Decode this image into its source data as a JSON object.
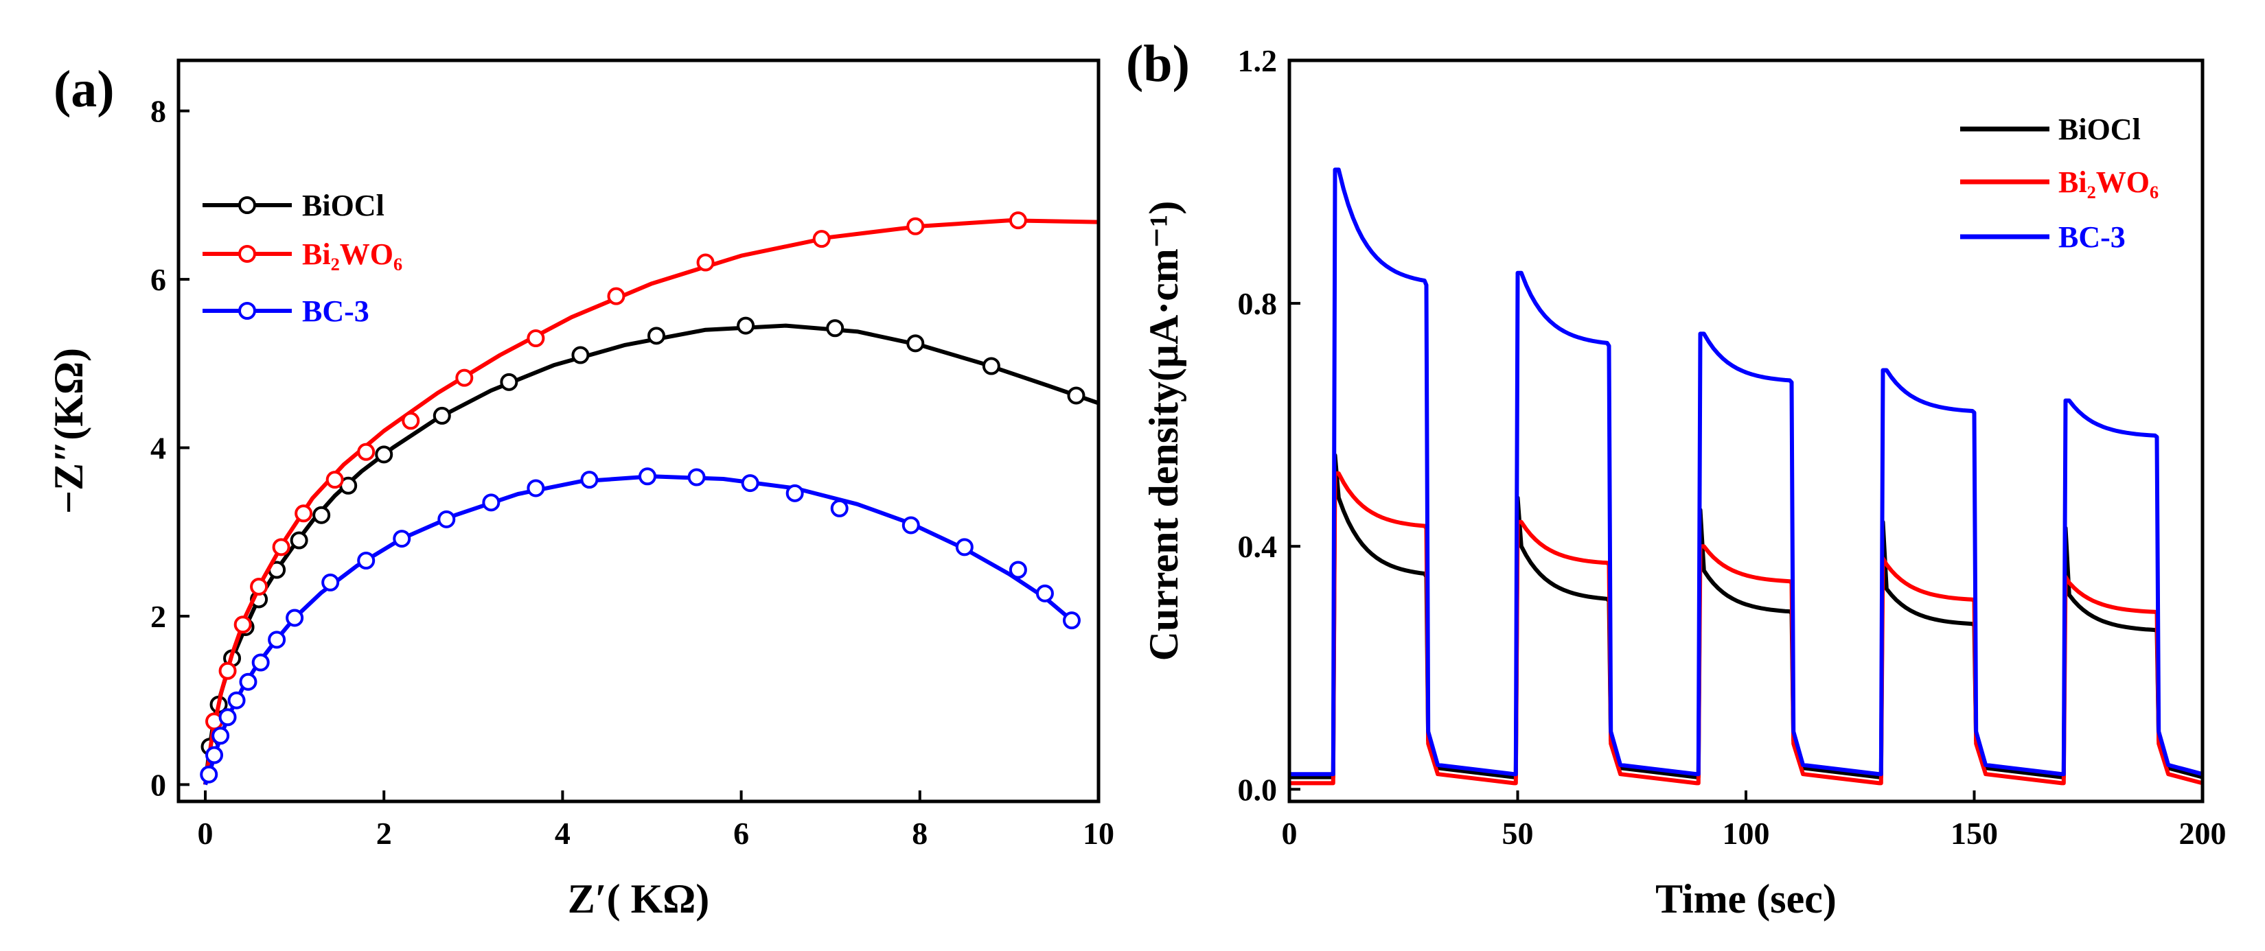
{
  "chart_data": [
    {
      "panel_label": "(a)",
      "type": "line",
      "xlabel": "Z′( KΩ)",
      "ylabel": "−Z″(KΩ)",
      "xlim": [
        -0.3,
        10
      ],
      "ylim": [
        -0.2,
        8.6
      ],
      "xticks": [
        0,
        2,
        4,
        6,
        8,
        10
      ],
      "yticks": [
        0,
        2,
        4,
        6,
        8
      ],
      "legend_position": "upper-left",
      "series": [
        {
          "name": "BiOCl",
          "color": "#000000",
          "markers": "open-circle",
          "points": [
            [
              0,
              0
            ],
            [
              0.05,
              0.45
            ],
            [
              0.1,
              0.8
            ],
            [
              0.18,
              1.1
            ],
            [
              0.25,
              1.35
            ],
            [
              0.35,
              1.62
            ],
            [
              0.45,
              1.87
            ],
            [
              0.55,
              2.1
            ],
            [
              0.68,
              2.34
            ],
            [
              0.82,
              2.58
            ],
            [
              1.0,
              2.85
            ],
            [
              1.2,
              3.13
            ],
            [
              1.45,
              3.43
            ],
            [
              1.75,
              3.72
            ],
            [
              2.1,
              4.0
            ],
            [
              2.6,
              4.35
            ],
            [
              3.2,
              4.68
            ],
            [
              3.9,
              4.98
            ],
            [
              4.7,
              5.22
            ],
            [
              5.6,
              5.4
            ],
            [
              6.5,
              5.45
            ],
            [
              7.3,
              5.38
            ],
            [
              8.0,
              5.22
            ],
            [
              8.7,
              5.0
            ],
            [
              9.4,
              4.75
            ],
            [
              10.0,
              4.53
            ]
          ],
          "marker_points": [
            [
              0.05,
              0.45
            ],
            [
              0.15,
              0.95
            ],
            [
              0.3,
              1.5
            ],
            [
              0.45,
              1.87
            ],
            [
              0.6,
              2.2
            ],
            [
              0.8,
              2.55
            ],
            [
              1.05,
              2.9
            ],
            [
              1.3,
              3.2
            ],
            [
              1.6,
              3.55
            ],
            [
              2.0,
              3.92
            ],
            [
              2.65,
              4.38
            ],
            [
              3.4,
              4.78
            ],
            [
              4.2,
              5.1
            ],
            [
              5.05,
              5.33
            ],
            [
              6.05,
              5.45
            ],
            [
              7.05,
              5.42
            ],
            [
              7.95,
              5.24
            ],
            [
              8.8,
              4.97
            ],
            [
              9.75,
              4.62
            ]
          ]
        },
        {
          "name": "Bi₂WO₆",
          "color": "#ff0000",
          "markers": "open-circle",
          "points": [
            [
              0,
              0
            ],
            [
              0.08,
              0.6
            ],
            [
              0.18,
              1.1
            ],
            [
              0.3,
              1.55
            ],
            [
              0.45,
              2.0
            ],
            [
              0.65,
              2.45
            ],
            [
              0.9,
              2.92
            ],
            [
              1.2,
              3.4
            ],
            [
              1.55,
              3.8
            ],
            [
              2.0,
              4.2
            ],
            [
              2.6,
              4.65
            ],
            [
              3.3,
              5.1
            ],
            [
              4.1,
              5.55
            ],
            [
              5.0,
              5.95
            ],
            [
              6.0,
              6.28
            ],
            [
              7.0,
              6.5
            ],
            [
              8.0,
              6.63
            ],
            [
              9.0,
              6.7
            ],
            [
              10.0,
              6.68
            ]
          ],
          "marker_points": [
            [
              0.1,
              0.75
            ],
            [
              0.25,
              1.35
            ],
            [
              0.42,
              1.9
            ],
            [
              0.6,
              2.35
            ],
            [
              0.85,
              2.82
            ],
            [
              1.1,
              3.22
            ],
            [
              1.45,
              3.62
            ],
            [
              1.8,
              3.95
            ],
            [
              2.3,
              4.32
            ],
            [
              2.9,
              4.83
            ],
            [
              3.7,
              5.3
            ],
            [
              4.6,
              5.8
            ],
            [
              5.6,
              6.2
            ],
            [
              6.9,
              6.48
            ],
            [
              7.95,
              6.63
            ],
            [
              9.1,
              6.7
            ]
          ]
        },
        {
          "name": "BC-3",
          "color": "#0000ff",
          "markers": "open-circle",
          "points": [
            [
              0,
              0
            ],
            [
              0.05,
              0.15
            ],
            [
              0.12,
              0.4
            ],
            [
              0.2,
              0.65
            ],
            [
              0.3,
              0.9
            ],
            [
              0.42,
              1.15
            ],
            [
              0.58,
              1.42
            ],
            [
              0.78,
              1.7
            ],
            [
              1.0,
              1.98
            ],
            [
              1.3,
              2.28
            ],
            [
              1.7,
              2.6
            ],
            [
              2.2,
              2.92
            ],
            [
              2.8,
              3.2
            ],
            [
              3.5,
              3.45
            ],
            [
              4.2,
              3.6
            ],
            [
              5.0,
              3.66
            ],
            [
              5.8,
              3.63
            ],
            [
              6.6,
              3.52
            ],
            [
              7.3,
              3.33
            ],
            [
              7.9,
              3.1
            ],
            [
              8.5,
              2.8
            ],
            [
              9.0,
              2.5
            ],
            [
              9.4,
              2.22
            ],
            [
              9.7,
              1.95
            ]
          ],
          "marker_points": [
            [
              0.04,
              0.12
            ],
            [
              0.1,
              0.35
            ],
            [
              0.17,
              0.58
            ],
            [
              0.25,
              0.8
            ],
            [
              0.35,
              1.0
            ],
            [
              0.48,
              1.22
            ],
            [
              0.62,
              1.45
            ],
            [
              0.8,
              1.72
            ],
            [
              1.0,
              1.98
            ],
            [
              1.4,
              2.4
            ],
            [
              1.8,
              2.66
            ],
            [
              2.2,
              2.92
            ],
            [
              2.7,
              3.15
            ],
            [
              3.2,
              3.35
            ],
            [
              3.7,
              3.52
            ],
            [
              4.3,
              3.62
            ],
            [
              4.95,
              3.66
            ],
            [
              5.5,
              3.65
            ],
            [
              6.1,
              3.58
            ],
            [
              6.6,
              3.46
            ],
            [
              7.1,
              3.28
            ],
            [
              7.9,
              3.08
            ],
            [
              8.5,
              2.82
            ],
            [
              9.1,
              2.55
            ],
            [
              9.4,
              2.27
            ],
            [
              9.7,
              1.95
            ]
          ]
        }
      ]
    },
    {
      "panel_label": "(b)",
      "type": "line",
      "xlabel": "Time (sec)",
      "ylabel": "Current density(μA·cm⁻¹)",
      "xlim": [
        0,
        200
      ],
      "ylim": [
        -0.02,
        1.2
      ],
      "xticks": [
        0,
        50,
        100,
        150,
        200
      ],
      "yticks": [
        0.0,
        0.4,
        0.8,
        1.2
      ],
      "legend_position": "upper-right",
      "light_on_sec": [
        10,
        50,
        90,
        130,
        170
      ],
      "light_off_sec": [
        30,
        70,
        110,
        150,
        190
      ],
      "series": [
        {
          "name": "BiOCl",
          "color": "#000000",
          "dark_current": 0.02,
          "cycle_spike": [
            0.55,
            0.48,
            0.46,
            0.44,
            0.43
          ],
          "cycle_start": [
            0.48,
            0.4,
            0.36,
            0.33,
            0.32
          ],
          "cycle_end": [
            0.35,
            0.31,
            0.29,
            0.27,
            0.26
          ]
        },
        {
          "name": "Bi₂WO₆",
          "color": "#ff0000",
          "dark_current": 0.01,
          "cycle_spike": [
            0.52,
            0.44,
            0.4,
            0.38,
            0.35
          ],
          "cycle_start": [
            0.52,
            0.44,
            0.4,
            0.37,
            0.34
          ],
          "cycle_end": [
            0.43,
            0.37,
            0.34,
            0.31,
            0.29
          ]
        },
        {
          "name": "BC-3",
          "color": "#0000ff",
          "dark_current": 0.025,
          "cycle_spike": [
            1.02,
            0.85,
            0.75,
            0.69,
            0.64
          ],
          "cycle_start": [
            1.02,
            0.85,
            0.75,
            0.69,
            0.64
          ],
          "cycle_end": [
            0.83,
            0.73,
            0.67,
            0.62,
            0.58
          ]
        }
      ]
    }
  ]
}
